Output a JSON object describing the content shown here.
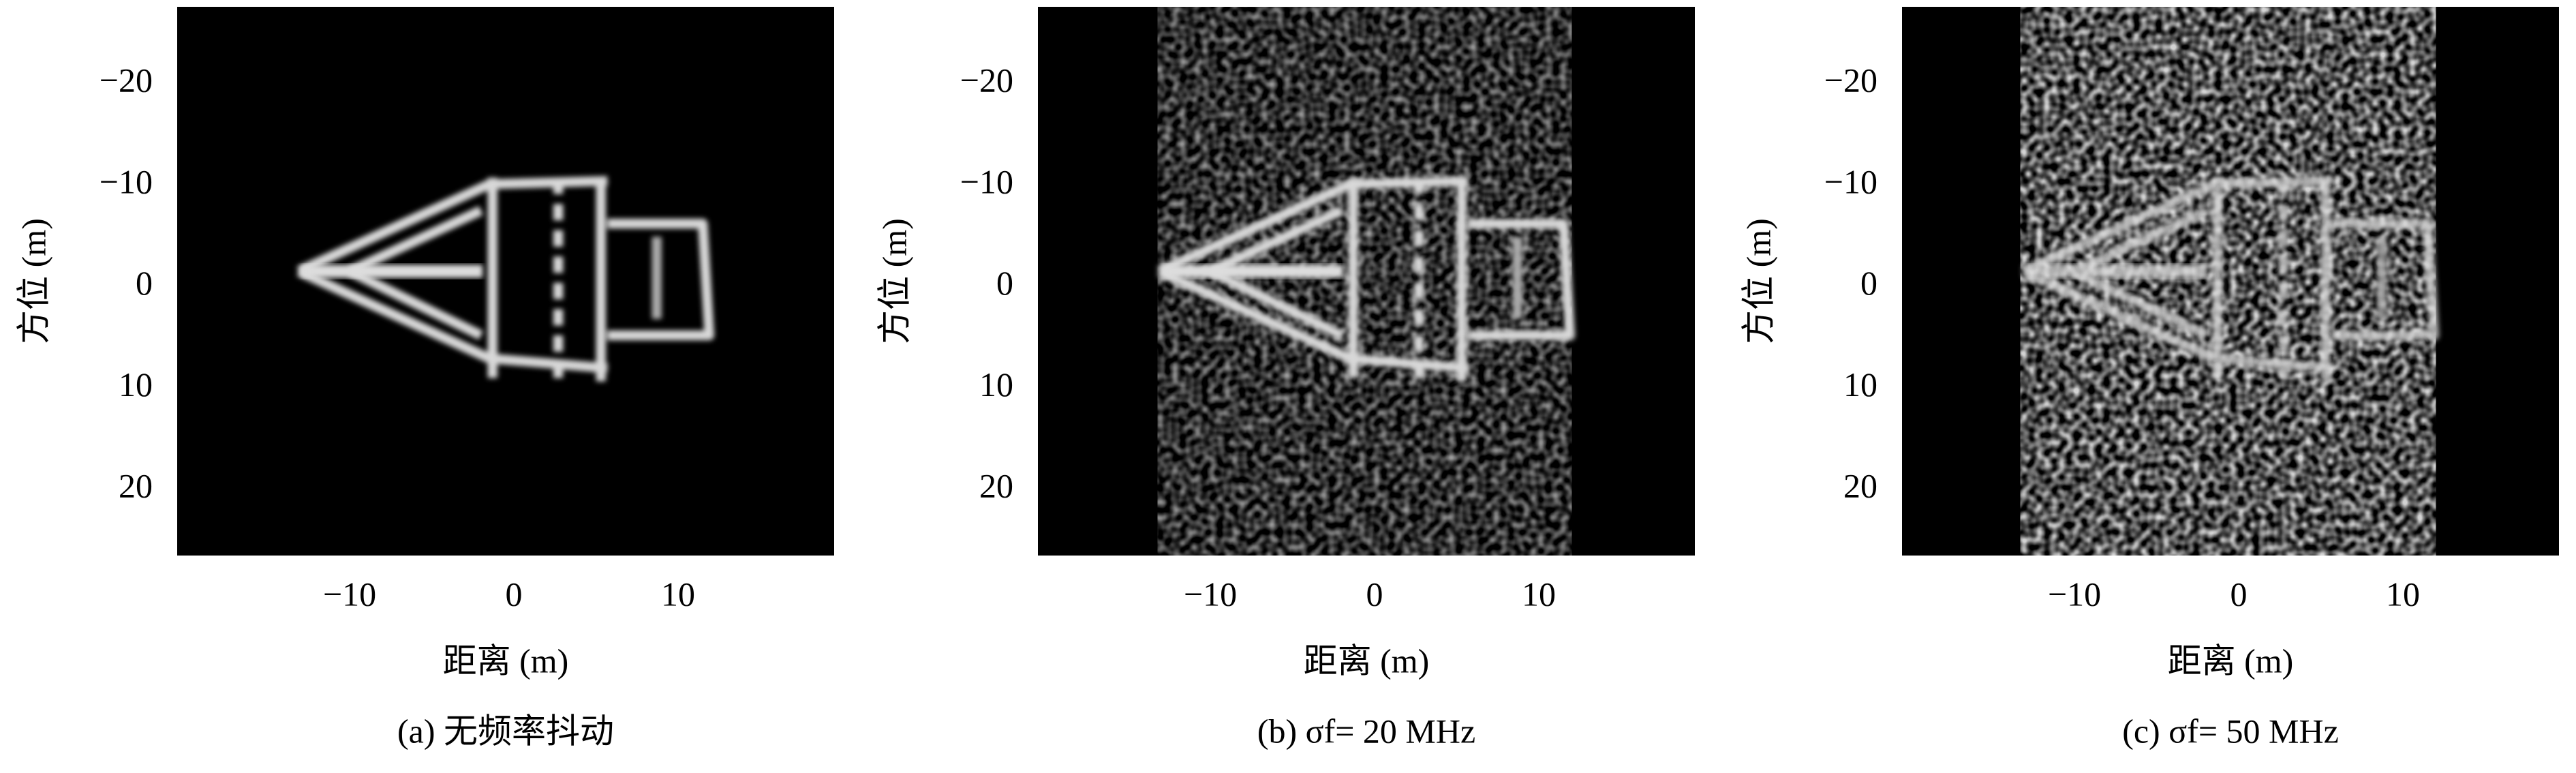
{
  "chart_data": [
    {
      "type": "image",
      "caption": "(a) 无频率抖动",
      "xlabel": "距离 (m)",
      "ylabel": "方位 (m)",
      "xlim": [
        -20.5,
        19.5
      ],
      "ylim": [
        -27.6,
        26.5
      ],
      "xticks": [
        {
          "value": -10,
          "label": "−10"
        },
        0,
        10
      ],
      "yticks": [
        {
          "value": -20,
          "label": "−20"
        },
        {
          "value": -10,
          "label": "−10"
        },
        0,
        10,
        20
      ]
    },
    {
      "type": "image",
      "caption": "(b) σf= 20 MHz",
      "xlabel": "距离 (m)",
      "ylabel": "方位 (m)",
      "xlim": [
        -20.5,
        19.5
      ],
      "ylim": [
        -27.6,
        26.5
      ],
      "xticks": [
        {
          "value": -10,
          "label": "−10"
        },
        0,
        10
      ],
      "yticks": [
        {
          "value": -20,
          "label": "−20"
        },
        {
          "value": -10,
          "label": "−10"
        },
        0,
        10,
        20
      ]
    },
    {
      "type": "image",
      "caption": "(c) σf= 50 MHz",
      "xlabel": "距离 (m)",
      "ylabel": "方位 (m)",
      "xlim": [
        -20.5,
        19.5
      ],
      "ylim": [
        -27.6,
        26.5
      ],
      "xticks": [
        {
          "value": -10,
          "label": "−10"
        },
        0,
        10
      ],
      "yticks": [
        {
          "value": -20,
          "label": "−20"
        },
        {
          "value": -10,
          "label": "−10"
        },
        0,
        10,
        20
      ]
    }
  ]
}
